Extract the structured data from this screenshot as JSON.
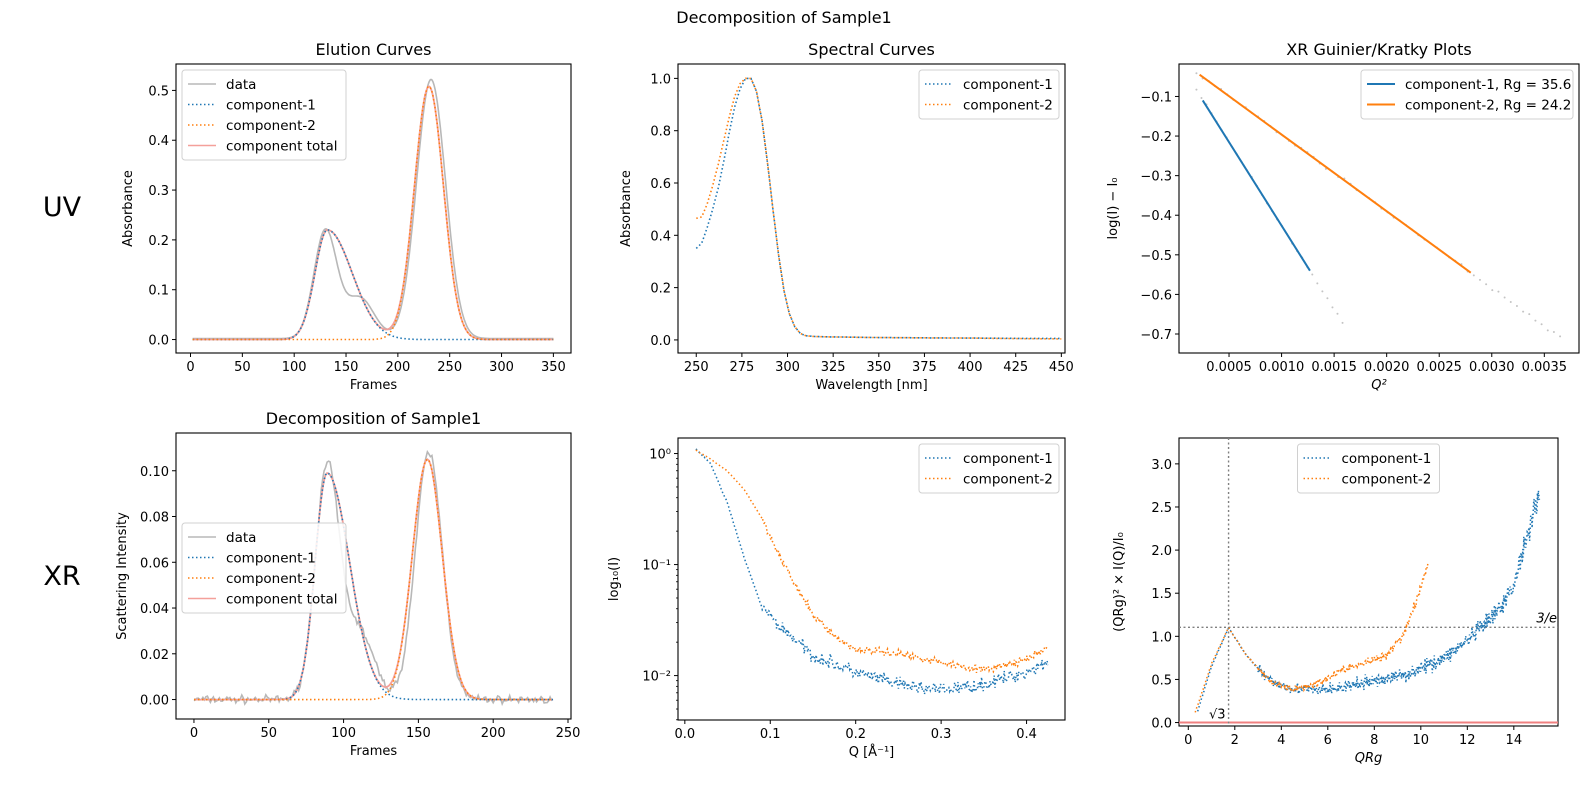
{
  "figure": {
    "suptitle": "Decomposition of Sample1",
    "row_labels": [
      "UV",
      "XR"
    ]
  },
  "colors": {
    "data": "#b8b8b8",
    "component_1": "#1f77b4",
    "component_2": "#ff7f0e",
    "total": "#f4a09a",
    "guide": "#808080",
    "kratky_zero": "#f08080"
  },
  "chart_data": [
    {
      "id": "uv_elution",
      "type": "line",
      "title": "Elution Curves",
      "xlabel": "Frames",
      "ylabel": "Absorbance",
      "xlim": [
        -14,
        367
      ],
      "ylim": [
        -0.027,
        0.553
      ],
      "xticks": [
        0,
        50,
        100,
        150,
        200,
        250,
        300,
        350
      ],
      "yticks": [
        0.0,
        0.1,
        0.2,
        0.3,
        0.4,
        0.5
      ],
      "ytick_labels": [
        "0.0",
        "0.1",
        "0.2",
        "0.3",
        "0.4",
        "0.5"
      ],
      "legend": {
        "position": "upper-left",
        "entries": [
          "data",
          "component-1",
          "component-2",
          "component total"
        ]
      },
      "x_range": [
        2,
        350
      ],
      "series": [
        {
          "name": "data",
          "style": "solid",
          "peaks": [
            [
              0.215,
              130,
              11
            ],
            [
              0.082,
              163,
              14
            ],
            [
              0.52,
              232,
              14
            ]
          ],
          "baseline": 0.002
        },
        {
          "name": "component-1",
          "style": "dotted",
          "peaks": [
            [
              0.22,
              132,
              12,
              24
            ]
          ]
        },
        {
          "name": "component-2",
          "style": "dotted",
          "peaks": [
            [
              0.508,
              230,
              14,
              14
            ]
          ]
        },
        {
          "name": "component total",
          "style": "solid",
          "sum_of": [
            "component-1",
            "component-2"
          ]
        }
      ]
    },
    {
      "id": "uv_spectral",
      "type": "line",
      "title": "Spectral Curves",
      "xlabel": "Wavelength [nm]",
      "ylabel": "Absorbance",
      "xlim": [
        240,
        452
      ],
      "ylim": [
        -0.05,
        1.055
      ],
      "xticks": [
        250,
        275,
        300,
        325,
        350,
        375,
        400,
        425,
        450
      ],
      "yticks": [
        0.0,
        0.2,
        0.4,
        0.6,
        0.8,
        1.0
      ],
      "ytick_labels": [
        "0.0",
        "0.2",
        "0.4",
        "0.6",
        "0.8",
        "1.0"
      ],
      "legend": {
        "position": "upper-right",
        "entries": [
          "component-1",
          "component-2"
        ]
      },
      "series": [
        {
          "name": "component-1",
          "style": "dotted",
          "x": [
            250,
            253,
            256,
            259,
            262,
            265,
            268,
            271,
            274,
            277,
            280,
            283,
            286,
            289,
            292,
            295,
            298,
            301,
            304,
            307,
            310,
            315,
            320,
            330,
            350,
            375,
            400,
            425,
            450
          ],
          "y": [
            0.35,
            0.37,
            0.43,
            0.5,
            0.58,
            0.68,
            0.79,
            0.89,
            0.96,
            1.0,
            1.0,
            0.95,
            0.84,
            0.68,
            0.5,
            0.33,
            0.19,
            0.1,
            0.05,
            0.025,
            0.016,
            0.013,
            0.012,
            0.011,
            0.009,
            0.008,
            0.007,
            0.006,
            0.006
          ]
        },
        {
          "name": "component-2",
          "style": "dotted",
          "x": [
            250,
            253,
            256,
            259,
            262,
            265,
            268,
            271,
            274,
            277,
            280,
            283,
            286,
            289,
            292,
            295,
            298,
            301,
            304,
            307,
            310,
            315,
            320,
            330,
            350,
            375,
            400,
            425,
            450
          ],
          "y": [
            0.465,
            0.47,
            0.52,
            0.59,
            0.67,
            0.76,
            0.85,
            0.93,
            0.98,
            1.0,
            1.0,
            0.95,
            0.84,
            0.68,
            0.5,
            0.33,
            0.19,
            0.1,
            0.05,
            0.025,
            0.016,
            0.013,
            0.012,
            0.011,
            0.009,
            0.008,
            0.007,
            0.005,
            0.004
          ]
        }
      ]
    },
    {
      "id": "xr_guinier",
      "type": "line",
      "title": "XR Guinier/Kratky Plots",
      "xlabel": "Q²",
      "ylabel": "log(I) − I₀",
      "xlim": [
        2.4e-05,
        0.00383
      ],
      "ylim": [
        -0.748,
        -0.018
      ],
      "xticks": [
        0.0005,
        0.001,
        0.0015,
        0.002,
        0.0025,
        0.003,
        0.0035
      ],
      "xtick_labels": [
        "0.0005",
        "0.0010",
        "0.0015",
        "0.0020",
        "0.0025",
        "0.0030",
        "0.0035"
      ],
      "yticks": [
        -0.1,
        -0.2,
        -0.3,
        -0.4,
        -0.5,
        -0.6,
        -0.7
      ],
      "ytick_labels": [
        "−0.1",
        "−0.2",
        "−0.3",
        "−0.4",
        "−0.5",
        "−0.6",
        "−0.7"
      ],
      "legend": {
        "position": "upper-right",
        "entries": [
          "component-1, Rg = 35.6",
          "component-2, Rg = 24.2"
        ]
      },
      "fits": [
        {
          "name": "component-1",
          "rg": 35.6,
          "x": [
            0.00025,
            0.00127
          ],
          "y": [
            -0.11,
            -0.54
          ]
        },
        {
          "name": "component-2",
          "rg": 24.2,
          "x": [
            0.00022,
            0.0028
          ],
          "y": [
            -0.045,
            -0.545
          ]
        }
      ],
      "points": [
        {
          "name": "component-1 data",
          "x_range": [
            0.00019,
            0.00158
          ],
          "slope": -422,
          "intercept": -0.004
        },
        {
          "name": "component-2 data",
          "x_range": [
            0.00019,
            0.00365
          ],
          "slope": -194,
          "intercept": -0.002
        }
      ]
    },
    {
      "id": "xr_elution",
      "type": "line",
      "title": "Decomposition of Sample1",
      "xlabel": "Frames",
      "ylabel": "Scattering Intensity",
      "xlim": [
        -12,
        252
      ],
      "ylim": [
        -0.0085,
        0.1165
      ],
      "xticks": [
        0,
        50,
        100,
        150,
        200,
        250
      ],
      "yticks": [
        0.0,
        0.02,
        0.04,
        0.06,
        0.08,
        0.1
      ],
      "ytick_labels": [
        "0.00",
        "0.02",
        "0.04",
        "0.06",
        "0.08",
        "0.10"
      ],
      "legend": {
        "position": "center-left",
        "entries": [
          "data",
          "component-1",
          "component-2",
          "component total"
        ]
      },
      "x_range": [
        0,
        240
      ],
      "series": [
        {
          "name": "data",
          "style": "solid",
          "peaks": [
            [
              0.1,
              89,
              8
            ],
            [
              0.03,
              110,
              10
            ],
            [
              0.108,
              157,
              9
            ]
          ],
          "noise": 0.0025
        },
        {
          "name": "component-1",
          "style": "dotted",
          "peaks": [
            [
              0.099,
              89,
              8,
              15
            ]
          ]
        },
        {
          "name": "component-2",
          "style": "dotted",
          "peaks": [
            [
              0.105,
              156,
              10,
              10
            ]
          ]
        },
        {
          "name": "component total",
          "style": "solid",
          "sum_of": [
            "component-1",
            "component-2"
          ]
        }
      ]
    },
    {
      "id": "xr_spectral",
      "type": "scatter",
      "title": "",
      "xlabel": "Q [Å⁻¹]",
      "ylabel": "log₁₀(I)",
      "yscale": "log",
      "xlim": [
        -0.008,
        0.445
      ],
      "ylim_log10": [
        -2.4,
        0.14
      ],
      "xticks": [
        0.0,
        0.1,
        0.2,
        0.3,
        0.4
      ],
      "xtick_labels": [
        "0.0",
        "0.1",
        "0.2",
        "0.3",
        "0.4"
      ],
      "yticks_log10": [
        0,
        -1,
        -2
      ],
      "ytick_labels": [
        "10⁰",
        "10⁻¹",
        "10⁻²"
      ],
      "legend": {
        "position": "upper-right",
        "entries": [
          "component-1",
          "component-2"
        ]
      },
      "series": [
        {
          "name": "component-1",
          "q": [
            0.013,
            0.03,
            0.05,
            0.07,
            0.09,
            0.11,
            0.13,
            0.15,
            0.2,
            0.25,
            0.3,
            0.35,
            0.4,
            0.425
          ],
          "log10I": [
            0.04,
            -0.09,
            -0.45,
            -0.95,
            -1.38,
            -1.55,
            -1.68,
            -1.82,
            -1.97,
            -2.08,
            -2.13,
            -2.08,
            -1.97,
            -1.87
          ],
          "noise": 0.09
        },
        {
          "name": "component-2",
          "q": [
            0.013,
            0.03,
            0.05,
            0.07,
            0.09,
            0.11,
            0.13,
            0.15,
            0.18,
            0.2,
            0.25,
            0.3,
            0.35,
            0.4,
            0.425
          ],
          "log10I": [
            0.03,
            -0.05,
            -0.16,
            -0.33,
            -0.58,
            -0.9,
            -1.2,
            -1.45,
            -1.68,
            -1.76,
            -1.8,
            -1.88,
            -1.95,
            -1.86,
            -1.75
          ],
          "noise": 0.05
        }
      ]
    },
    {
      "id": "xr_kratky",
      "type": "scatter",
      "title": "",
      "xlabel": "QRg",
      "ylabel": "(QRg)² × I(Q)/I₀",
      "xlim": [
        -0.4,
        15.9
      ],
      "ylim": [
        -0.04,
        3.3
      ],
      "xticks": [
        0,
        2,
        4,
        6,
        8,
        10,
        12,
        14
      ],
      "yticks": [
        0.0,
        0.5,
        1.0,
        1.5,
        2.0,
        2.5,
        3.0
      ],
      "ytick_labels": [
        "0.0",
        "0.5",
        "1.0",
        "1.5",
        "2.0",
        "2.5",
        "3.0"
      ],
      "legend": {
        "position": "upper-center",
        "entries": [
          "component-1",
          "component-2"
        ]
      },
      "reference_lines": {
        "vertical_x": 1.732,
        "vertical_label": "√3",
        "horizontal_y": 1.104,
        "horizontal_label": "3/e",
        "zero_line_y": 0.0
      },
      "series": [
        {
          "name": "component-1",
          "x": [
            0.4,
            1.0,
            1.732,
            2.5,
            3.5,
            4.5,
            5.5,
            6.5,
            8,
            9.5,
            11,
            12,
            13,
            13.5,
            14,
            14.5,
            15.1
          ],
          "y": [
            0.13,
            0.65,
            1.1,
            0.78,
            0.48,
            0.4,
            0.37,
            0.4,
            0.48,
            0.57,
            0.75,
            0.95,
            1.2,
            1.35,
            1.6,
            2.1,
            2.7
          ],
          "noise": 0.12
        },
        {
          "name": "component-2",
          "x": [
            0.3,
            1.0,
            1.732,
            2.5,
            3.5,
            4.5,
            5.5,
            6.5,
            7.5,
            8.5,
            9.2,
            9.8,
            10.3
          ],
          "y": [
            0.12,
            0.68,
            1.1,
            0.78,
            0.48,
            0.38,
            0.45,
            0.6,
            0.68,
            0.78,
            1.0,
            1.4,
            1.85
          ],
          "noise": 0.07
        }
      ]
    }
  ]
}
